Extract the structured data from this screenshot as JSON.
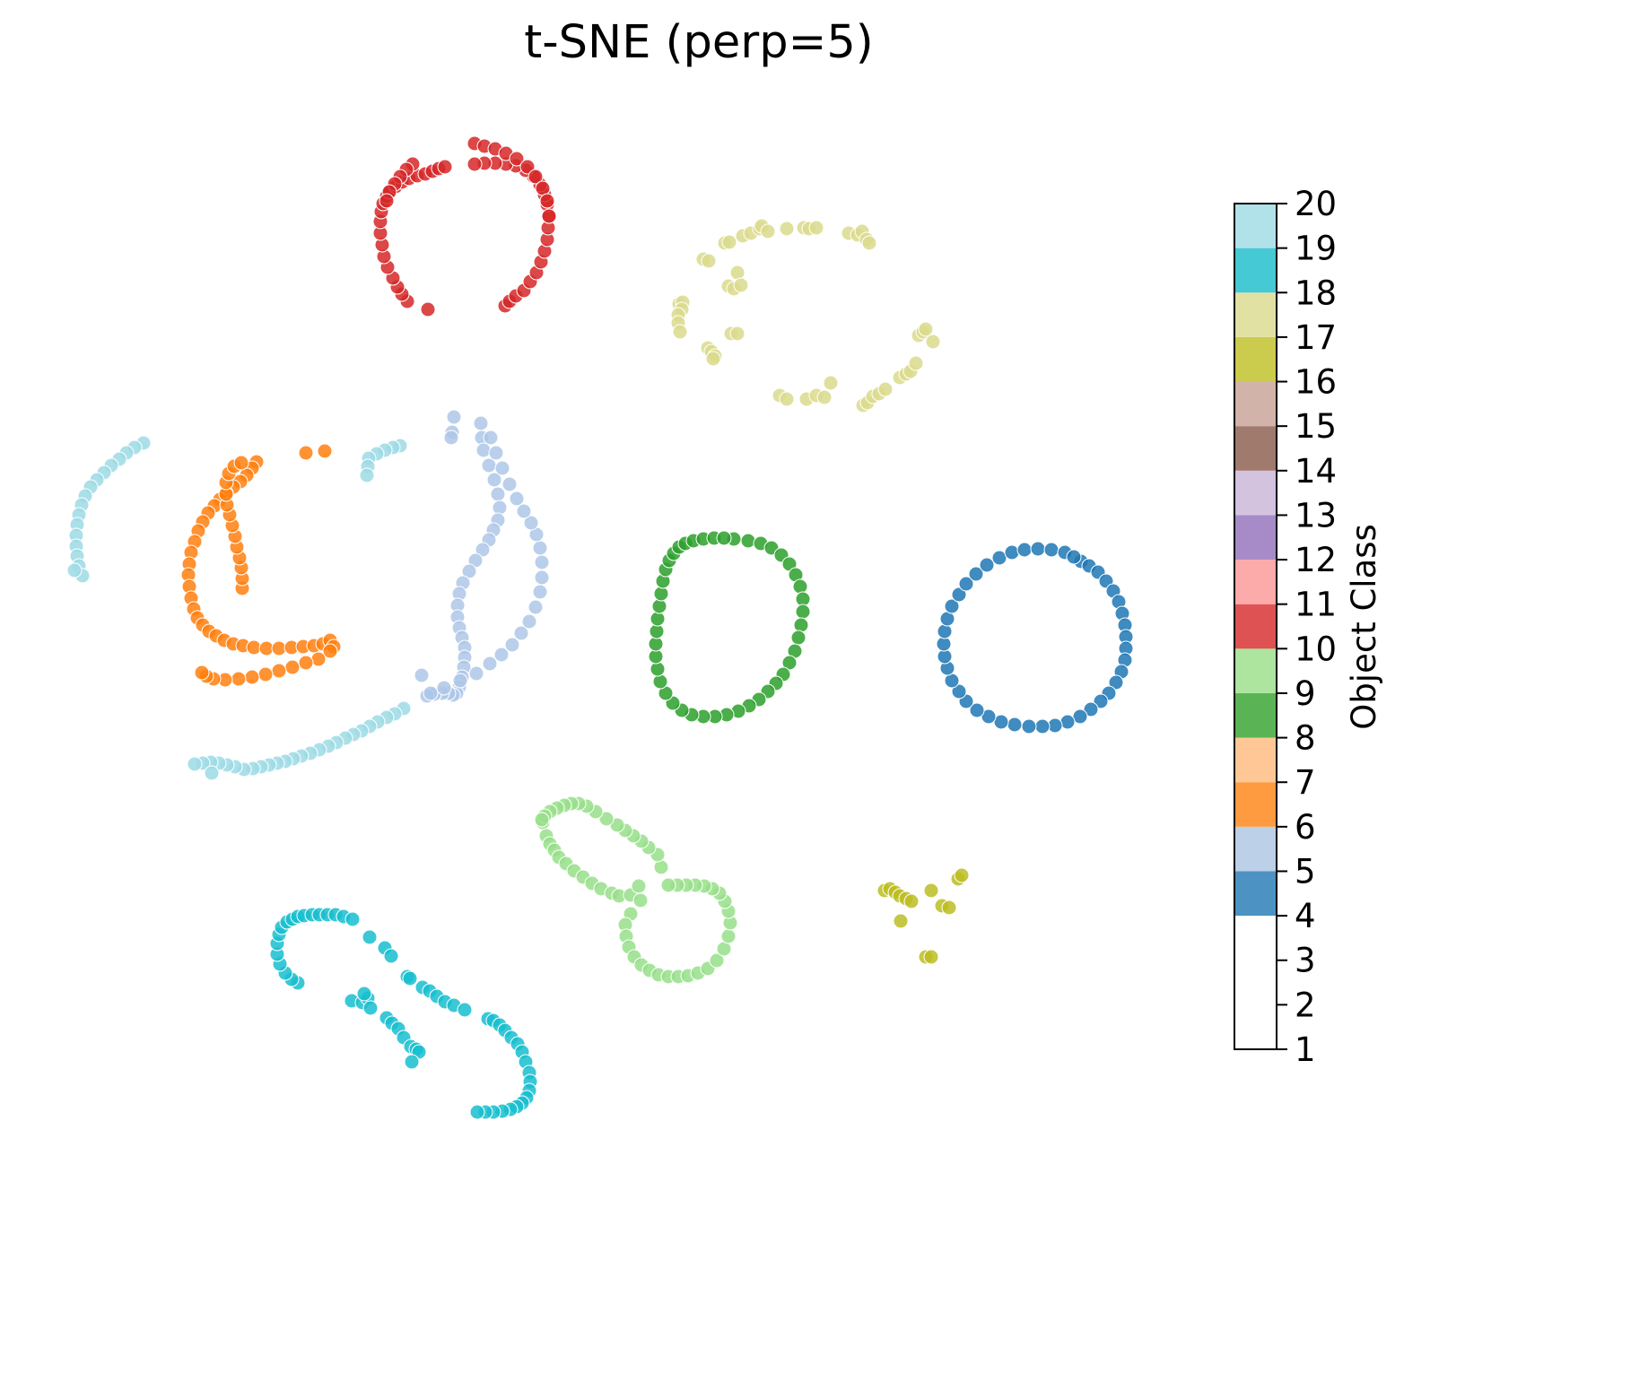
{
  "chart_data": {
    "type": "scatter",
    "title": "t-SNE (perp=5)",
    "xlabel": "",
    "ylabel": "",
    "axes_visible": false,
    "grid": false,
    "marker_edge_color": "#ffffff",
    "colorbar": {
      "label": "Object Class",
      "range": [
        1,
        20
      ],
      "ticks": [
        1,
        2,
        3,
        4,
        5,
        6,
        7,
        8,
        9,
        10,
        11,
        12,
        13,
        14,
        15,
        16,
        17,
        18,
        19,
        20
      ],
      "tick_labels": [
        "1",
        "2",
        "3",
        "4",
        "5",
        "6",
        "7",
        "8",
        "9",
        "10",
        "11",
        "12",
        "13",
        "14",
        "15",
        "16",
        "17",
        "18",
        "19",
        "20"
      ],
      "segments": [
        {
          "from": 1,
          "to": 4,
          "color": "#ffffff"
        },
        {
          "from": 4,
          "to": 5,
          "color": "#4c93c3"
        },
        {
          "from": 5,
          "to": 6,
          "color": "#bcd0e8"
        },
        {
          "from": 6,
          "to": 7,
          "color": "#fe9a3f"
        },
        {
          "from": 7,
          "to": 8,
          "color": "#ffc795"
        },
        {
          "from": 8,
          "to": 9,
          "color": "#5ab455"
        },
        {
          "from": 9,
          "to": 10,
          "color": "#ade59f"
        },
        {
          "from": 10,
          "to": 11,
          "color": "#df5253"
        },
        {
          "from": 11,
          "to": 12,
          "color": "#fdabaa"
        },
        {
          "from": 12,
          "to": 13,
          "color": "#a68bc8"
        },
        {
          "from": 13,
          "to": 14,
          "color": "#d3c3df"
        },
        {
          "from": 14,
          "to": 15,
          "color": "#a07a6d"
        },
        {
          "from": 15,
          "to": 16,
          "color": "#d1b3a9"
        },
        {
          "from": 16,
          "to": 17,
          "color": "#e995cb"
        },
        {
          "from": 17,
          "to": 18,
          "color": "#f6c5db"
        },
        {
          "from": 18,
          "to": 19,
          "color": "#989898"
        },
        {
          "from": 19,
          "to": 20,
          "color": "#d3d3d3"
        }
      ],
      "top_colors_as_rendered": [
        {
          "from": 16,
          "to": 17,
          "color": "#cbcb4d"
        },
        {
          "from": 17,
          "to": 18,
          "color": "#e1e1a3"
        },
        {
          "from": 18,
          "to": 19,
          "color": "#45c9d5"
        },
        {
          "from": 19,
          "to": 20,
          "color": "#b1e2ea"
        }
      ]
    },
    "series": [
      {
        "class": 4,
        "color": "#1f77b4",
        "x": [
          1205,
          1214,
          1224,
          1233,
          1241,
          1247,
          1251,
          1254,
          1255,
          1255,
          1254,
          1250,
          1244,
          1236,
          1227,
          1216,
          1204,
          1190,
          1176,
          1162,
          1147,
          1131,
          1116,
          1102,
          1089,
          1077,
          1069,
          1061,
          1056,
          1053,
          1052,
          1053,
          1056,
          1061,
          1069,
          1077,
          1088,
          1100,
          1114,
          1128,
          1142,
          1157,
          1172,
          1187,
          1197
        ],
        "y": [
          626,
          631,
          638,
          648,
          659,
          671,
          684,
          697,
          710,
          723,
          736,
          749,
          761,
          773,
          782,
          791,
          799,
          805,
          809,
          810,
          810,
          808,
          805,
          799,
          792,
          782,
          771,
          759,
          745,
          732,
          718,
          704,
          690,
          676,
          663,
          651,
          640,
          630,
          622,
          616,
          613,
          612,
          613,
          616,
          621
        ]
      },
      {
        "class": 5,
        "color": "#aec7e8",
        "x": [
          506,
          504,
          503,
          536,
          537,
          539,
          545,
          551,
          555,
          557,
          555,
          550,
          545,
          538,
          530,
          523,
          516,
          512,
          510,
          510,
          512,
          515,
          518,
          518,
          517,
          515,
          512,
          509,
          505,
          500,
          493,
          484,
          476,
          470,
          480,
          495,
          513,
          531,
          546,
          559,
          571,
          581,
          590,
          597,
          602,
          604,
          604,
          602,
          598,
          592,
          584,
          576,
          568,
          560,
          553,
          547
        ],
        "y": [
          465,
          482,
          488,
          472,
          488,
          502,
          519,
          535,
          551,
          566,
          580,
          591,
          602,
          613,
          625,
          637,
          650,
          662,
          675,
          688,
          700,
          711,
          722,
          733,
          744,
          755,
          766,
          773,
          775,
          773,
          773,
          774,
          776,
          753,
          773,
          767,
          759,
          751,
          740,
          730,
          719,
          706,
          693,
          677,
          660,
          644,
          627,
          611,
          596,
          583,
          570,
          556,
          540,
          522,
          505,
          488
        ]
      },
      {
        "class": 6,
        "color": "#ff7f0e",
        "x": [
          341,
          362,
          286,
          281,
          275,
          268,
          260,
          252,
          245,
          239,
          232,
          226,
          221,
          217,
          213,
          211,
          210,
          211,
          213,
          216,
          220,
          226,
          233,
          241,
          250,
          260,
          271,
          283,
          297,
          311,
          325,
          338,
          350,
          360,
          368,
          372,
          368,
          355,
          341,
          326,
          311,
          296,
          281,
          266,
          251,
          238,
          230,
          225,
          270,
          270,
          269,
          267,
          264,
          262,
          259,
          256,
          253,
          252,
          252,
          255,
          261,
          269
        ],
        "y": [
          505,
          503,
          515,
          522,
          530,
          537,
          543,
          550,
          557,
          564,
          572,
          582,
          592,
          604,
          616,
          629,
          641,
          654,
          667,
          679,
          689,
          697,
          704,
          709,
          714,
          718,
          720,
          722,
          723,
          723,
          722,
          721,
          720,
          718,
          714,
          721,
          726,
          735,
          739,
          744,
          748,
          752,
          755,
          757,
          758,
          757,
          754,
          750,
          656,
          645,
          633,
          622,
          610,
          598,
          586,
          574,
          563,
          551,
          538,
          528,
          520,
          516
        ]
      },
      {
        "class": 7,
        "color": "#2ca02c",
        "x": [
          818,
          834,
          848,
          860,
          871,
          880,
          887,
          892,
          895,
          895,
          893,
          890,
          886,
          880,
          873,
          865,
          856,
          846,
          835,
          823,
          810,
          797,
          784,
          771,
          760,
          750,
          742,
          736,
          733,
          731,
          731,
          732,
          733,
          735,
          737,
          739,
          742,
          746,
          751,
          757,
          764,
          773,
          784,
          796,
          807
        ],
        "y": [
          601,
          603,
          606,
          611,
          619,
          629,
          641,
          654,
          668,
          682,
          697,
          711,
          726,
          739,
          752,
          762,
          771,
          780,
          787,
          793,
          797,
          799,
          799,
          797,
          792,
          784,
          773,
          760,
          746,
          732,
          718,
          704,
          690,
          676,
          662,
          648,
          635,
          625,
          617,
          610,
          606,
          603,
          601,
          600,
          600
        ]
      },
      {
        "class": 8,
        "color": "#98df8a",
        "x": [
          605,
          609,
          613,
          618,
          623,
          631,
          640,
          650,
          660,
          670,
          682,
          690,
          703,
          712,
          714,
          703,
          697,
          698,
          701,
          707,
          715,
          724,
          734,
          745,
          756,
          767,
          778,
          789,
          799,
          807,
          812,
          814,
          812,
          808,
          802,
          794,
          785,
          775,
          765,
          755,
          745,
          737,
          733,
          723,
          715,
          706,
          697,
          688,
          676,
          664,
          654,
          645,
          637,
          629,
          621,
          613,
          607,
          604
        ],
        "y": [
          917,
          932,
          941,
          948,
          956,
          963,
          971,
          978,
          985,
          991,
          996,
          999,
          998,
          988,
          1004,
          1019,
          1031,
          1044,
          1056,
          1067,
          1076,
          1082,
          1087,
          1089,
          1089,
          1088,
          1085,
          1080,
          1071,
          1058,
          1044,
          1029,
          1016,
          1005,
          996,
          991,
          988,
          987,
          987,
          987,
          987,
          967,
          953,
          945,
          938,
          932,
          926,
          920,
          913,
          905,
          899,
          896,
          896,
          898,
          901,
          905,
          910,
          914
        ]
      },
      {
        "class": 9,
        "color": "#d62728",
        "x": [
          477,
          454,
          448,
          443,
          438,
          432,
          428,
          426,
          424,
          424,
          425,
          427,
          431,
          435,
          441,
          448,
          456,
          465,
          474,
          482,
          489,
          496,
          460,
          453,
          446,
          440,
          434,
          431,
          563,
          568,
          575,
          584,
          591,
          598,
          603,
          607,
          610,
          611,
          612,
          610,
          607,
          602,
          595,
          586,
          575,
          564,
          552,
          540,
          529,
          529,
          540,
          552,
          564,
          576,
          588,
          597,
          605,
          610,
          612
        ],
        "y": [
          345,
          336,
          328,
          320,
          310,
          298,
          286,
          273,
          260,
          247,
          236,
          227,
          219,
          213,
          208,
          203,
          199,
          196,
          194,
          191,
          188,
          186,
          183,
          189,
          197,
          205,
          214,
          224,
          341,
          336,
          330,
          324,
          314,
          304,
          292,
          280,
          267,
          254,
          241,
          228,
          217,
          206,
          197,
          190,
          185,
          183,
          182,
          182,
          183,
          160,
          163,
          166,
          171,
          177,
          186,
          197,
          210,
          224,
          241
        ]
      },
      {
        "class": 16,
        "color": "#bcbd22",
        "x": [
          986,
          992,
          998,
          1003,
          1010,
          1016,
          1038,
          1050,
          1058,
          1068,
          1072,
          1004,
          1032,
          1038
        ],
        "y": [
          993,
          991,
          995,
          999,
          1002,
          1005,
          993,
          1010,
          1012,
          980,
          976,
          1027,
          1067,
          1067
        ]
      },
      {
        "class": 17,
        "color": "#dbdb8d",
        "x": [
          784,
          790,
          808,
          813,
          828,
          837,
          847,
          849,
          856,
          877,
          896,
          902,
          910,
          946,
          956,
          961,
          966,
          969,
          812,
          818,
          822,
          826,
          757,
          761,
          760,
          756,
          756,
          758,
          815,
          822,
          789,
          793,
          797,
          795,
          869,
          877,
          899,
          910,
          919,
          926,
          962,
          967,
          973,
          980,
          987,
          1003,
          1010,
          1015,
          1021,
          1024,
          1029,
          1032,
          1040
        ],
        "y": [
          289,
          291,
          271,
          270,
          263,
          260,
          255,
          252,
          258,
          255,
          254,
          255,
          254,
          260,
          262,
          258,
          267,
          271,
          319,
          322,
          304,
          318,
          339,
          337,
          345,
          351,
          360,
          370,
          372,
          372,
          388,
          392,
          397,
          400,
          441,
          445,
          445,
          441,
          443,
          427,
          452,
          449,
          442,
          439,
          434,
          421,
          417,
          414,
          405,
          374,
          370,
          367,
          381
        ]
      },
      {
        "class": 18,
        "color": "#17becf",
        "x": [
          332,
          325,
          318,
          312,
          309,
          309,
          311,
          314,
          320,
          326,
          332,
          339,
          348,
          356,
          365,
          374,
          383,
          393,
          412,
          429,
          436,
          454,
          457,
          471,
          479,
          487,
          496,
          506,
          518,
          544,
          550,
          557,
          563,
          570,
          577,
          582,
          586,
          590,
          591,
          590,
          587,
          582,
          576,
          569,
          560,
          550,
          541,
          532,
          392,
          404,
          410,
          406,
          413,
          431,
          437,
          444,
          450,
          458,
          464,
          467,
          459
        ],
        "y": [
          1096,
          1092,
          1085,
          1075,
          1064,
          1052,
          1042,
          1034,
          1028,
          1025,
          1022,
          1021,
          1020,
          1020,
          1020,
          1020,
          1022,
          1025,
          1045,
          1057,
          1066,
          1089,
          1091,
          1101,
          1105,
          1111,
          1117,
          1121,
          1126,
          1136,
          1138,
          1143,
          1149,
          1157,
          1164,
          1173,
          1184,
          1196,
          1206,
          1216,
          1224,
          1230,
          1234,
          1237,
          1239,
          1240,
          1240,
          1240,
          1116,
          1118,
          1113,
          1108,
          1124,
          1135,
          1141,
          1147,
          1157,
          1167,
          1170,
          1173,
          1184
        ]
      },
      {
        "class": 19,
        "color": "#9edae5",
        "x": [
          160,
          150,
          141,
          133,
          124,
          116,
          108,
          101,
          95,
          91,
          88,
          86,
          85,
          85,
          86,
          88,
          92,
          83,
          446,
          438,
          429,
          420,
          411,
          410,
          409,
          450,
          440,
          431,
          421,
          412,
          403,
          394,
          385,
          375,
          366,
          356,
          346,
          336,
          327,
          318,
          309,
          300,
          291,
          282,
          272,
          262,
          253,
          244,
          235,
          226,
          217,
          236
        ],
        "y": [
          494,
          499,
          505,
          512,
          519,
          527,
          535,
          543,
          553,
          563,
          574,
          585,
          597,
          609,
          620,
          631,
          642,
          636,
          497,
          499,
          502,
          506,
          511,
          520,
          530,
          790,
          796,
          800,
          805,
          810,
          815,
          819,
          823,
          828,
          832,
          836,
          840,
          843,
          846,
          849,
          851,
          853,
          855,
          857,
          858,
          855,
          853,
          851,
          850,
          851,
          852,
          862
        ]
      }
    ]
  }
}
